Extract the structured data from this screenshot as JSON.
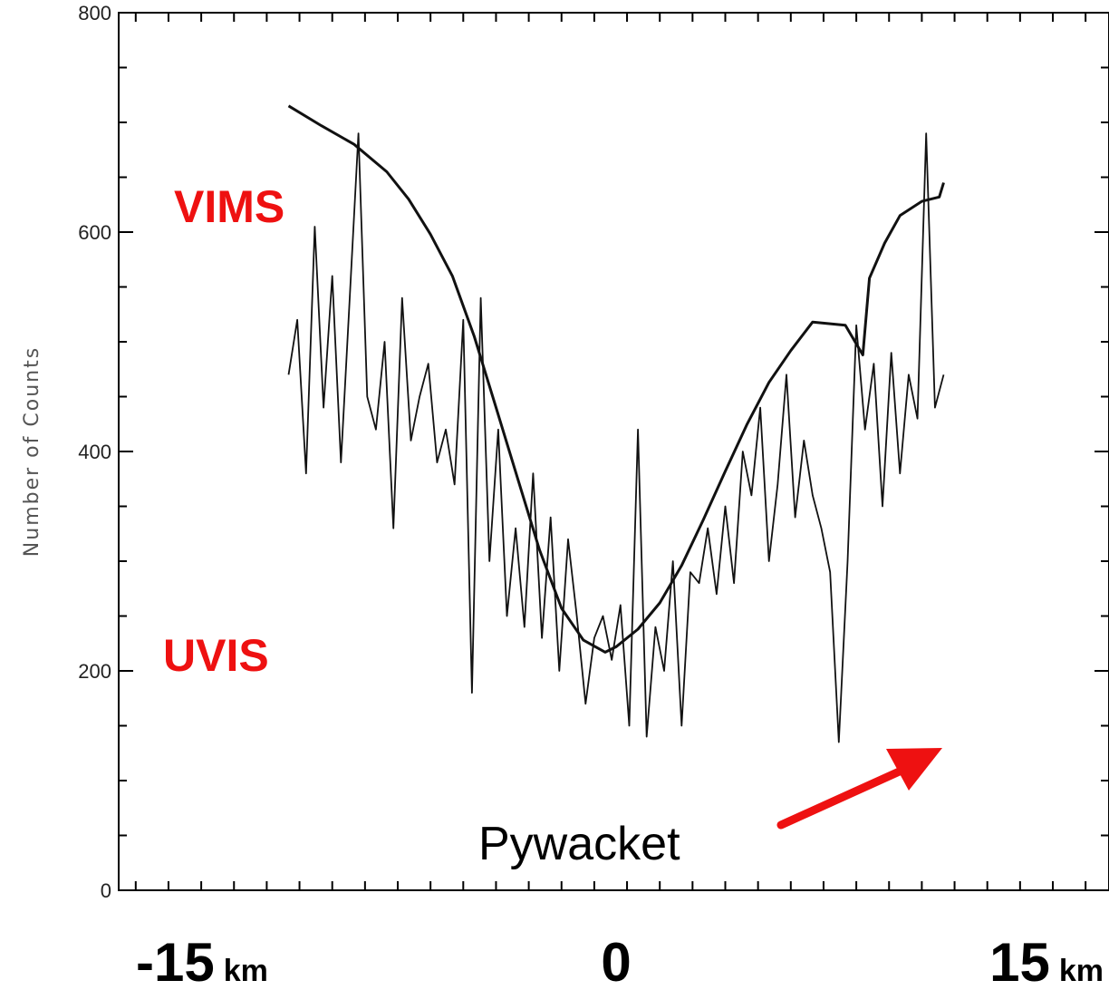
{
  "chart_data": {
    "type": "line",
    "title": "",
    "ylabel": "Number of Counts",
    "xlim": [
      -15,
      15
    ],
    "ylim": [
      0,
      800
    ],
    "yticks": [
      0,
      200,
      400,
      600,
      800
    ],
    "ytick_labels": [
      "0",
      "200",
      "400",
      "600",
      "800"
    ],
    "xtick_labels": [
      {
        "value": -15,
        "number": "-15",
        "unit": "km"
      },
      {
        "value": 0,
        "number": "0",
        "unit": ""
      },
      {
        "value": 15,
        "number": "15",
        "unit": "km"
      }
    ],
    "grid": false,
    "series": [
      {
        "name": "VIMS",
        "color": "#111111",
        "x": [
          -15,
          -13.5,
          -12,
          -10.5,
          -9.5,
          -8.5,
          -7.5,
          -6.5,
          -5.5,
          -4.5,
          -3.5,
          -2.5,
          -1.5,
          -0.5,
          0,
          1,
          2,
          3,
          4,
          5,
          6,
          7,
          8,
          9,
          10.5,
          11.3,
          11.6,
          12.3,
          13,
          14,
          14.8,
          15
        ],
        "values": [
          715,
          697,
          680,
          655,
          630,
          598,
          560,
          505,
          440,
          375,
          310,
          257,
          228,
          217,
          222,
          238,
          262,
          296,
          338,
          382,
          425,
          463,
          492,
          518,
          515,
          488,
          558,
          590,
          615,
          628,
          632,
          645
        ]
      },
      {
        "name": "UVIS",
        "color": "#111111",
        "x": [
          -15,
          -14.6,
          -14.2,
          -13.8,
          -13.4,
          -13,
          -12.6,
          -12.2,
          -11.8,
          -11.4,
          -11,
          -10.6,
          -10.2,
          -9.8,
          -9.4,
          -9,
          -8.6,
          -8.2,
          -7.8,
          -7.4,
          -7,
          -6.6,
          -6.2,
          -5.8,
          -5.4,
          -5,
          -4.6,
          -4.2,
          -3.8,
          -3.4,
          -3,
          -2.6,
          -2.2,
          -1.8,
          -1.4,
          -1,
          -0.6,
          -0.2,
          0.2,
          0.6,
          1,
          1.4,
          1.8,
          2.2,
          2.6,
          3,
          3.4,
          3.8,
          4.2,
          4.6,
          5,
          5.4,
          5.8,
          6.2,
          6.6,
          7,
          7.4,
          7.8,
          8.2,
          8.6,
          9,
          9.4,
          9.8,
          10.2,
          10.6,
          11,
          11.4,
          11.8,
          12.2,
          12.6,
          13,
          13.4,
          13.8,
          14.2,
          14.6,
          15
        ],
        "values": [
          470,
          520,
          380,
          605,
          440,
          560,
          390,
          540,
          690,
          450,
          420,
          500,
          330,
          540,
          410,
          450,
          480,
          390,
          420,
          370,
          520,
          180,
          540,
          300,
          420,
          250,
          330,
          240,
          380,
          230,
          340,
          200,
          320,
          250,
          170,
          230,
          250,
          210,
          260,
          150,
          420,
          140,
          240,
          200,
          300,
          150,
          290,
          280,
          330,
          270,
          350,
          280,
          400,
          360,
          440,
          300,
          370,
          470,
          340,
          410,
          360,
          330,
          290,
          135,
          300,
          515,
          420,
          480,
          350,
          490,
          380,
          470,
          430,
          690,
          440,
          470
        ]
      }
    ],
    "series_labels": {
      "vims": "VIMS",
      "uvis": "UVIS"
    },
    "annotations": [
      {
        "text": "Pywacket",
        "target_x": 10.3,
        "target_y": 135,
        "arrow_color": "#ee1111"
      }
    ]
  }
}
